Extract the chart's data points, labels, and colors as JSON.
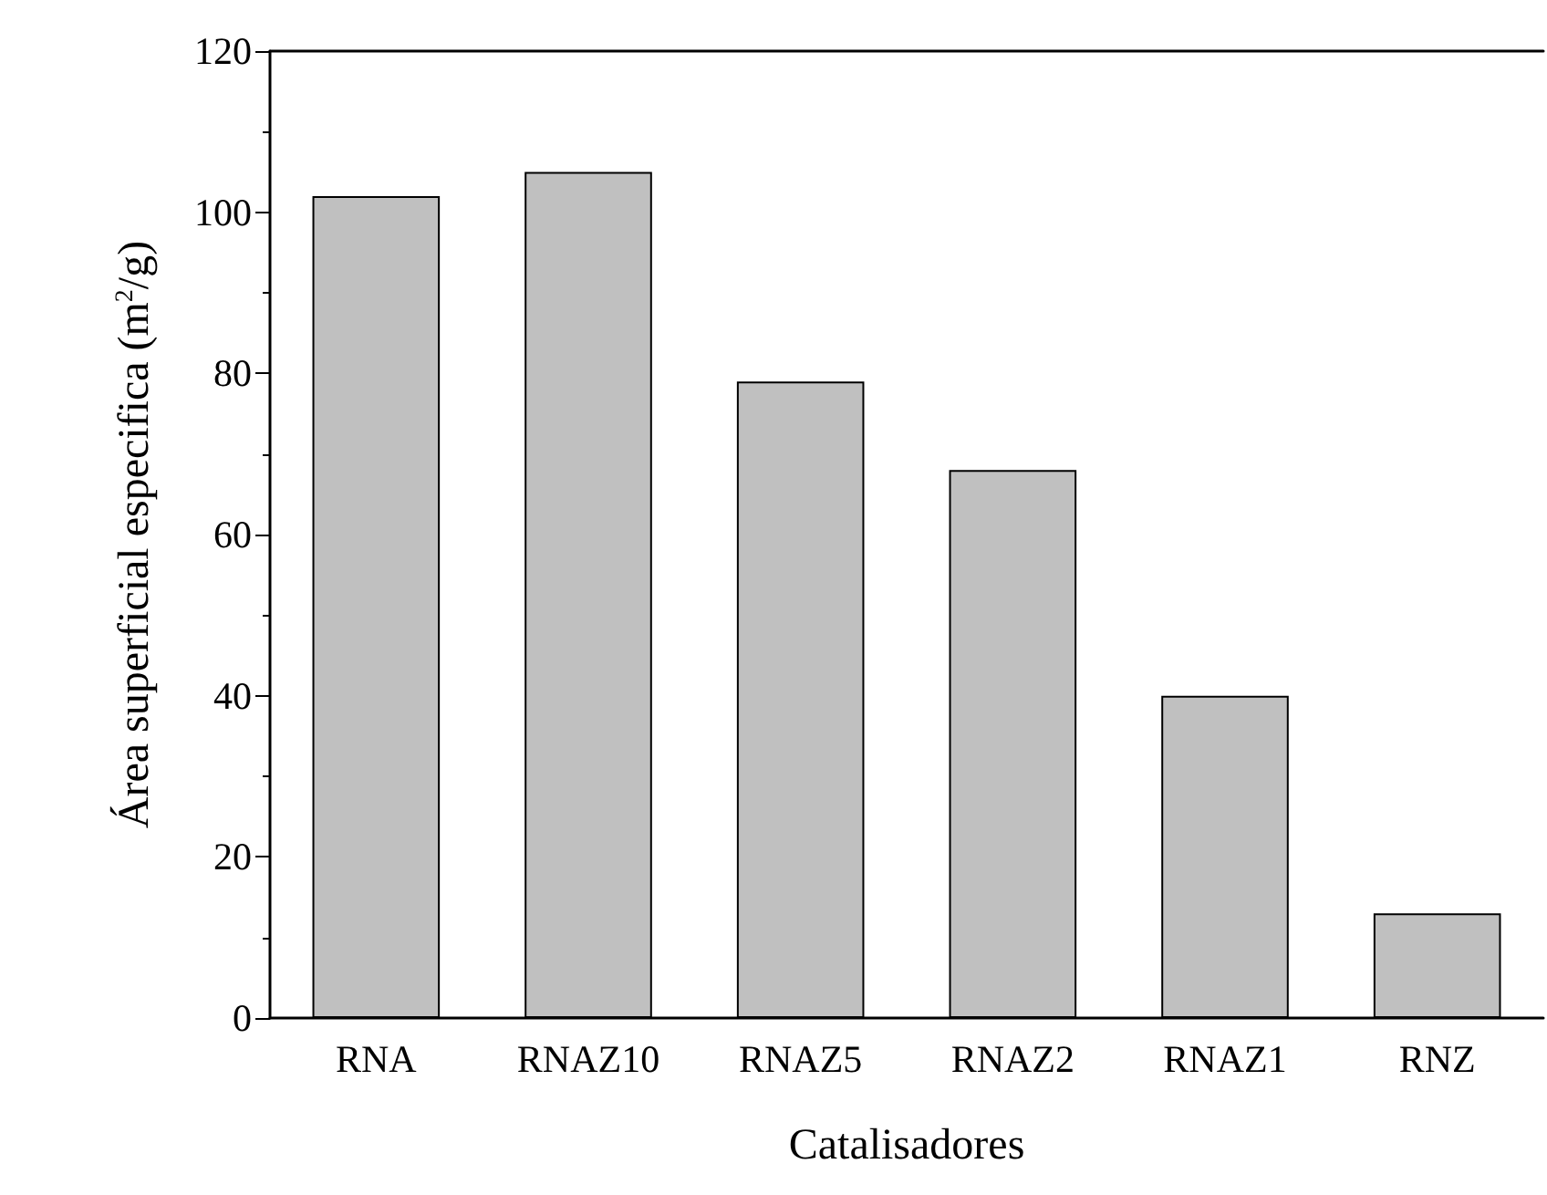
{
  "chart_data": {
    "type": "bar",
    "xlabel": "Catalisadores",
    "ylabel": "Área superficial especifica (m$^{2}$/g)",
    "categories": [
      "RNA",
      "RNAZ10",
      "RNAZ5",
      "RNAZ2",
      "RNAZ1",
      "RNZ"
    ],
    "values": [
      102,
      105,
      79,
      68,
      40,
      13
    ],
    "color": "#c0c0c0",
    "ylim": [
      0,
      120
    ],
    "yticks": [
      0,
      20,
      40,
      60,
      80,
      100,
      120
    ]
  }
}
